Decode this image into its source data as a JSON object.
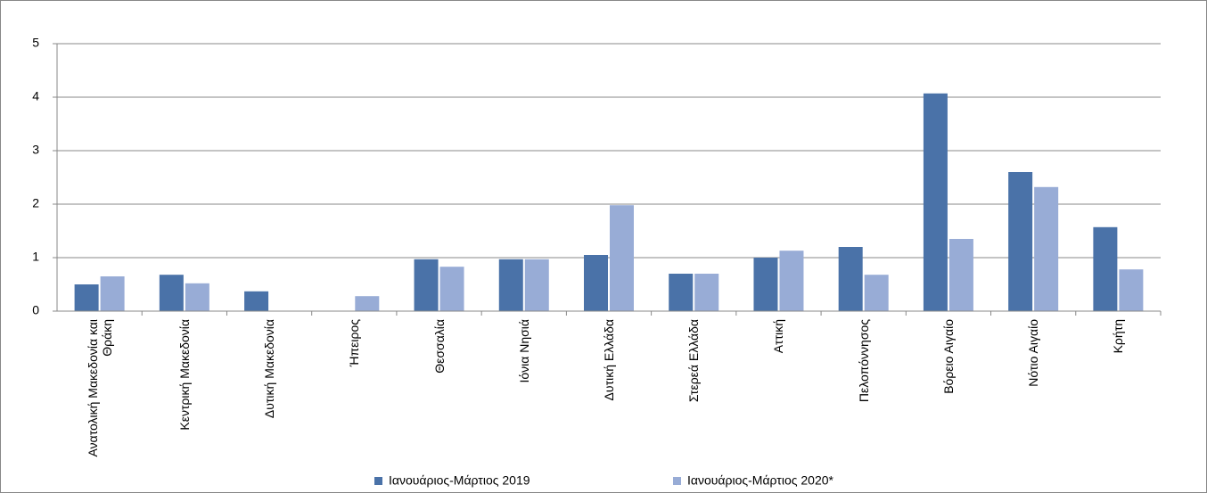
{
  "chart_data": {
    "type": "bar",
    "categories": [
      "Ανατολική Μακεδονία και Θράκη",
      "Κεντρική Μακεδονία",
      "Δυτική Μακεδονία",
      "Ήπειρος",
      "Θεσσαλία",
      "Ιόνια Νησιά",
      "Δυτική Ελλάδα",
      "Στερεά Ελλάδα",
      "Αττική",
      "Πελοπόννησος",
      "Βόρειο Αιγαίο",
      "Νότιο Αιγαίο",
      "Κρήτη"
    ],
    "series": [
      {
        "name": "Ιανουάριος-Μάρτιος 2019",
        "color": "#4a72a8",
        "values": [
          0.5,
          0.68,
          0.37,
          0,
          0.97,
          0.97,
          1.05,
          0.7,
          1.0,
          1.2,
          4.07,
          2.6,
          1.57
        ]
      },
      {
        "name": "Ιανουάριος-Μάρτιος 2020*",
        "color": "#98acd6",
        "values": [
          0.65,
          0.52,
          0,
          0.28,
          0.83,
          0.97,
          1.98,
          0.7,
          1.13,
          0.68,
          1.35,
          2.32,
          0.78
        ]
      }
    ],
    "ylim": [
      0,
      5
    ],
    "yticks": [
      0,
      1,
      2,
      3,
      4,
      5
    ],
    "grid": true
  }
}
